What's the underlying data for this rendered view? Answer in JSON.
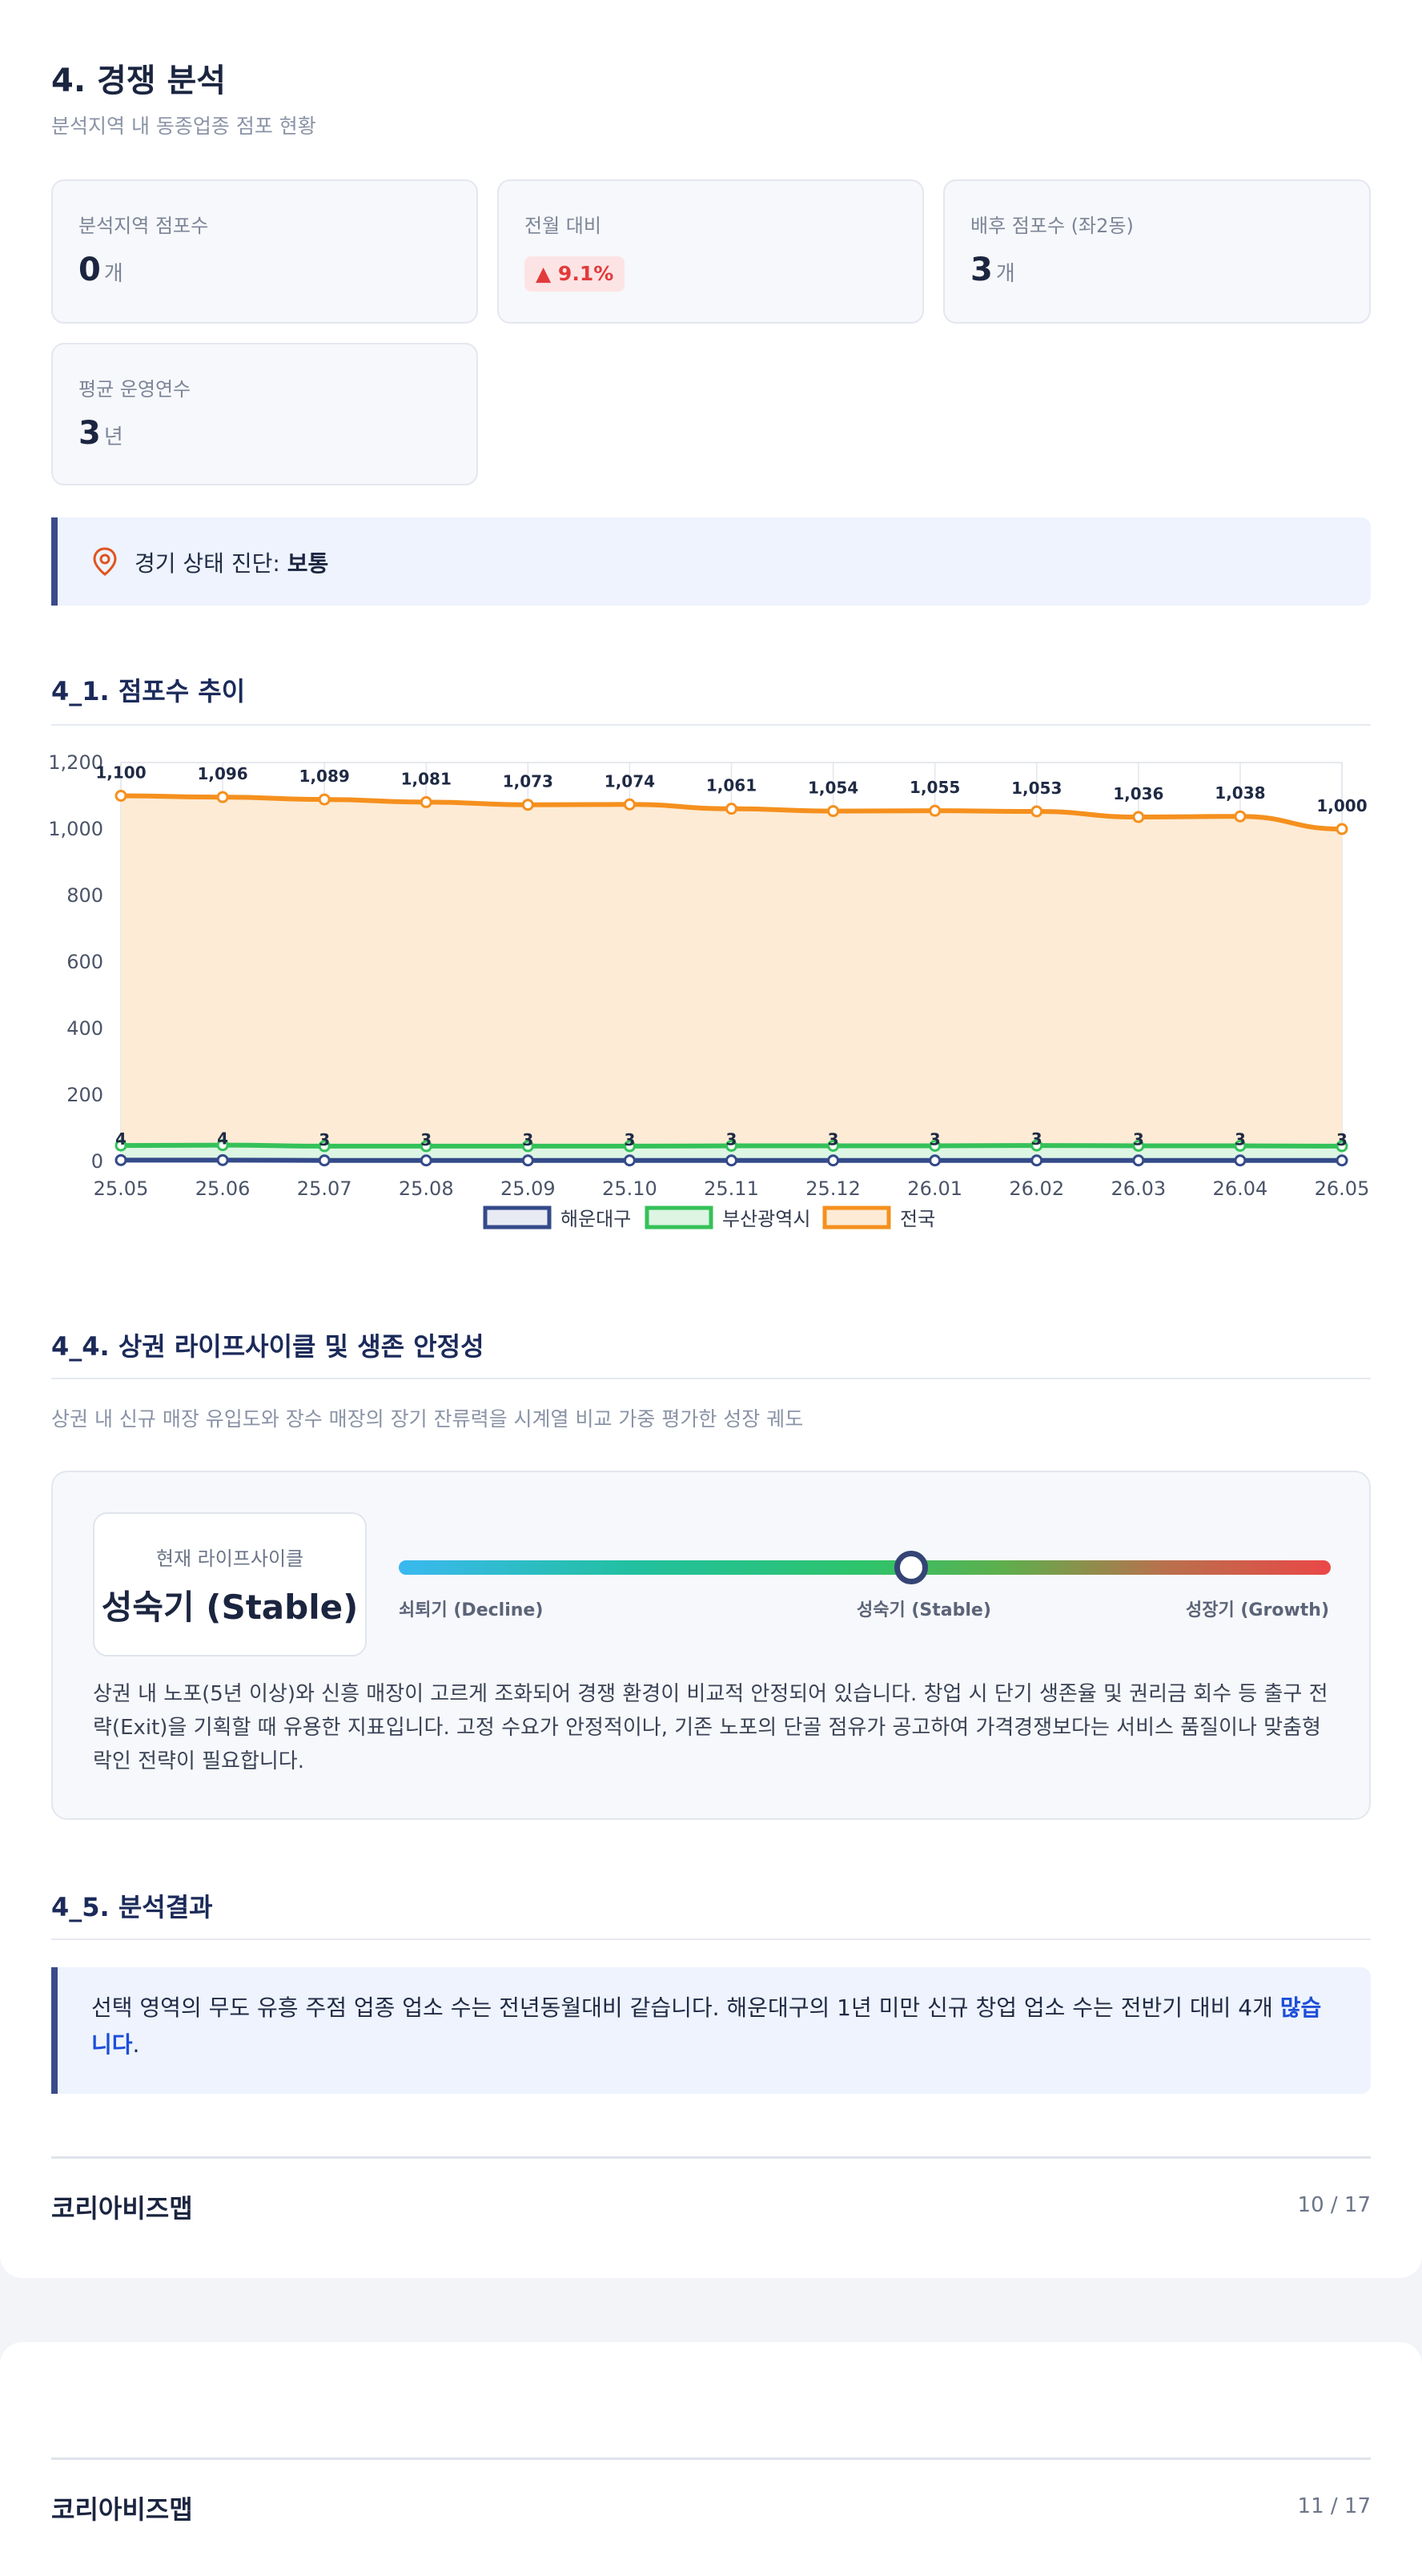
{
  "header": {
    "title": "4. 경쟁 분석",
    "subtitle": "분석지역 내 동종업종 점포 현황"
  },
  "stats": [
    {
      "label": "분석지역 점포수",
      "value": "0",
      "unit": "개"
    },
    {
      "label": "전월 대비",
      "value": "▲ 9.1%"
    },
    {
      "label": "배후 점포수 (좌2동)",
      "value": "3",
      "unit": "개"
    },
    {
      "label": "평균 운영연수",
      "value": "3",
      "unit": "년"
    }
  ],
  "diagnosis": {
    "prefix": "경기 상태 진단: ",
    "value": "보통"
  },
  "section_trend": {
    "title": "4_1. 점포수 추이"
  },
  "chart_data": {
    "type": "line",
    "categories": [
      "25.05",
      "25.06",
      "25.07",
      "25.08",
      "25.09",
      "25.10",
      "25.11",
      "25.12",
      "26.01",
      "26.02",
      "26.03",
      "26.04",
      "26.05"
    ],
    "series": [
      {
        "name": "해운대구",
        "values": [
          4,
          4,
          3,
          3,
          3,
          3,
          3,
          3,
          3,
          3,
          3,
          3,
          3
        ],
        "color": "#344a8a",
        "fill": "#e8eaf4"
      },
      {
        "name": "부산광역시",
        "values": [
          48,
          49,
          46,
          46,
          46,
          46,
          47,
          47,
          47,
          48,
          47,
          47,
          46
        ],
        "color": "#34c159",
        "fill": "#ddf5e3"
      },
      {
        "name": "전국",
        "values": [
          1100,
          1096,
          1089,
          1081,
          1073,
          1074,
          1061,
          1054,
          1055,
          1053,
          1036,
          1038,
          1000
        ],
        "color": "#f5901e",
        "fill": "#fdebd5"
      }
    ],
    "data_labels_upper": [
      "1,100",
      "1,096",
      "1,089",
      "1,081",
      "1,073",
      "1,074",
      "1,061",
      "1,054",
      "1,055",
      "1,053",
      "1,036",
      "1,038",
      "1,000"
    ],
    "data_labels_lower": [
      "4",
      "4",
      "3",
      "3",
      "3",
      "3",
      "3",
      "3",
      "3",
      "3",
      "3",
      "3",
      "3"
    ],
    "yticks": [
      "0",
      "200",
      "400",
      "600",
      "800",
      "1,000",
      "1,200"
    ],
    "ylim": [
      0,
      1200
    ],
    "grid": true,
    "legend": "bottom"
  },
  "section_lifecycle": {
    "title": "4_4. 상권 라이프사이클 및 생존 안정성",
    "desc": "상권 내 신규 매장 유입도와 장수 매장의 장기 잔류력을 시계열 비교 가중 평가한 성장 궤도",
    "current_label": "현재 라이프사이클",
    "current_value": "성숙기 (Stable)",
    "gauge_position": 0.55,
    "gauge_labels": {
      "left": "쇠퇴기 (Decline)",
      "mid": "성숙기 (Stable)",
      "right": "성장기 (Growth)"
    },
    "body": "상권 내 노포(5년 이상)와 신흥 매장이 고르게 조화되어 경쟁 환경이 비교적 안정되어 있습니다. 창업 시 단기 생존율 및 권리금 회수 등 출구 전략(Exit)을 기획할 때 유용한 지표입니다. 고정 수요가 안정적이나, 기존 노포의 단골 점유가 공고하여 가격경쟁보다는 서비스 품질이나 맞춤형 락인 전략이 필요합니다."
  },
  "section_result": {
    "title": "4_5. 분석결과",
    "text": "선택 영역의 무도 유흥 주점 업종 업소 수는 전년동월대비 같습니다. 해운대구의 1년 미만 신규 창업 업소 수는 전반기 대비 4개 ",
    "highlight": "많습니다",
    "suffix": "."
  },
  "footer1": {
    "brand": "코리아비즈맵",
    "page": "10 / 17"
  },
  "footer2": {
    "brand": "코리아비즈맵",
    "page": "11 / 17"
  }
}
